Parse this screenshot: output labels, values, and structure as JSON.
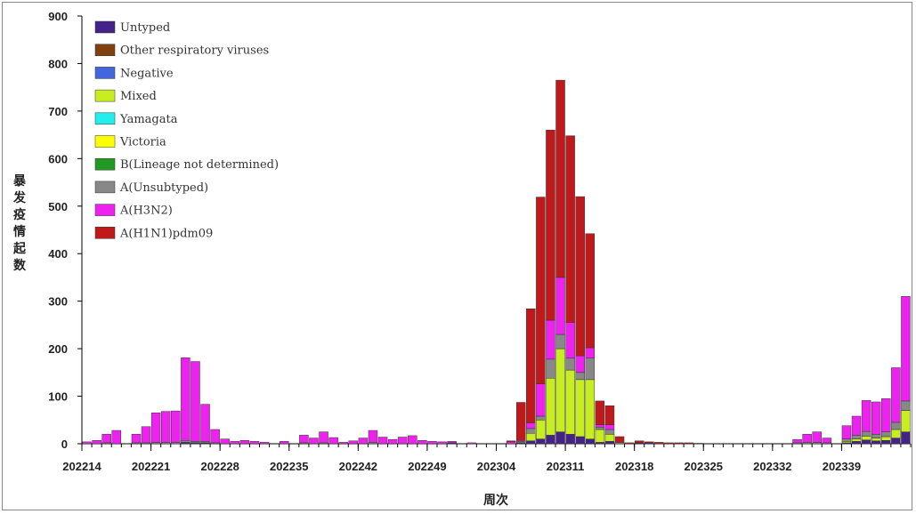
{
  "chart_data": {
    "type": "bar",
    "stacked": true,
    "xlabel": "周次",
    "ylabel": "暴发疫情起数",
    "ylim": [
      0,
      900
    ],
    "yticks": [
      0,
      100,
      200,
      300,
      400,
      500,
      600,
      700,
      800,
      900
    ],
    "xtick_labels": [
      "202214",
      "202221",
      "202228",
      "202235",
      "202242",
      "202249",
      "202304",
      "202311",
      "202318",
      "202325",
      "202332",
      "202339"
    ],
    "legend_position": "top-left",
    "colors": {
      "A(H1N1)pdm09": "#c0191b",
      "A(H3N2)": "#ee22ee",
      "A(Unsubtyped)": "#888888",
      "B(Lineage not determined)": "#229922",
      "Victoria": "#ffff00",
      "Yamagata": "#22eeee",
      "Mixed": "#c8ee22",
      "Negative": "#4466dd",
      "Other respiratory viruses": "#804010",
      "Untyped": "#442288"
    },
    "legend": [
      "Untyped",
      "Other respiratory viruses",
      "Negative",
      "Mixed",
      "Yamagata",
      "Victoria",
      "B(Lineage not determined)",
      "A(Unsubtyped)",
      "A(H3N2)",
      "A(H1N1)pdm09"
    ],
    "stack_order": [
      "Untyped",
      "Other respiratory viruses",
      "Negative",
      "B(Lineage not determined)",
      "Victoria",
      "Yamagata",
      "Mixed",
      "A(Unsubtyped)",
      "A(H3N2)",
      "A(H1N1)pdm09"
    ],
    "start_week": "202214",
    "weeks": [
      {
        "A(H3N2)": 4,
        "A(H1N1)pdm09": 0
      },
      {
        "A(H3N2)": 7
      },
      {
        "A(H3N2)": 18,
        "A(Unsubtyped)": 2
      },
      {
        "A(H3N2)": 28
      },
      {},
      {
        "A(H3N2)": 18,
        "A(Unsubtyped)": 2
      },
      {
        "A(H3N2)": 34,
        "A(Unsubtyped)": 2
      },
      {
        "A(H3N2)": 62,
        "A(Unsubtyped)": 3
      },
      {
        "A(H3N2)": 65,
        "A(Unsubtyped)": 3
      },
      {
        "A(H3N2)": 66,
        "A(Unsubtyped)": 3
      },
      {
        "A(H3N2)": 174,
        "A(Unsubtyped)": 4,
        "Untyped": 3
      },
      {
        "A(H3N2)": 168,
        "A(Unsubtyped)": 3,
        "Untyped": 2
      },
      {
        "A(H3N2)": 78,
        "A(Unsubtyped)": 3,
        "Untyped": 2
      },
      {
        "A(H3N2)": 28,
        "A(Unsubtyped)": 2
      },
      {
        "A(H3N2)": 10
      },
      {
        "A(H3N2)": 5
      },
      {
        "A(H3N2)": 7
      },
      {
        "A(H3N2)": 5
      },
      {
        "A(H3N2)": 3
      },
      {},
      {
        "A(H3N2)": 5
      },
      {},
      {
        "A(H3N2)": 16,
        "A(Unsubtyped)": 2
      },
      {
        "A(H3N2)": 12
      },
      {
        "A(H3N2)": 23,
        "A(Unsubtyped)": 2
      },
      {
        "A(H3N2)": 13
      },
      {
        "A(H3N2)": 3
      },
      {
        "A(H3N2)": 6
      },
      {
        "A(H3N2)": 12
      },
      {
        "A(H3N2)": 25,
        "A(Unsubtyped)": 3
      },
      {
        "A(H3N2)": 14
      },
      {
        "A(H3N2)": 9
      },
      {
        "A(H3N2)": 14
      },
      {
        "A(H3N2)": 17
      },
      {
        "A(H3N2)": 7
      },
      {
        "A(H3N2)": 5
      },
      {
        "A(H3N2)": 4
      },
      {
        "A(H3N2)": 3,
        "Untyped": 2
      },
      {},
      {
        "A(H3N2)": 2
      },
      {},
      {},
      {},
      {
        "A(H3N2)": 4,
        "A(H1N1)pdm09": 2
      },
      {
        "A(H1N1)pdm09": 80,
        "A(H3N2)": 2,
        "A(Unsubtyped)": 3,
        "Mixed": 0,
        "Untyped": 2
      },
      {
        "A(H1N1)pdm09": 240,
        "A(H3N2)": 12,
        "A(Unsubtyped)": 10,
        "Mixed": 16,
        "Untyped": 6
      },
      {
        "A(H1N1)pdm09": 393,
        "A(H3N2)": 68,
        "A(Unsubtyped)": 8,
        "Mixed": 40,
        "Untyped": 10
      },
      {
        "A(H1N1)pdm09": 400,
        "A(H3N2)": 82,
        "A(Unsubtyped)": 40,
        "Mixed": 120,
        "Untyped": 18
      },
      {
        "A(H1N1)pdm09": 415,
        "A(H3N2)": 120,
        "A(Unsubtyped)": 30,
        "Mixed": 175,
        "Untyped": 25
      },
      {
        "A(H1N1)pdm09": 393,
        "A(H3N2)": 75,
        "A(Unsubtyped)": 25,
        "Mixed": 135,
        "Untyped": 20
      },
      {
        "A(H1N1)pdm09": 335,
        "A(H3N2)": 35,
        "A(Unsubtyped)": 15,
        "Mixed": 120,
        "Untyped": 15
      },
      {
        "A(H1N1)pdm09": 240,
        "A(H3N2)": 22,
        "A(Unsubtyped)": 45,
        "Mixed": 125,
        "Untyped": 10
      },
      {
        "A(H1N1)pdm09": 50,
        "A(H3N2)": 5,
        "A(Unsubtyped)": 5,
        "Mixed": 27,
        "Untyped": 3
      },
      {
        "A(H1N1)pdm09": 40,
        "A(H3N2)": 10,
        "A(Unsubtyped)": 10,
        "Mixed": 15,
        "Untyped": 5
      },
      {
        "A(H1N1)pdm09": 12,
        "A(Unsubtyped)": 3
      },
      {
        "A(H1N1)pdm09": 2
      },
      {
        "A(H1N1)pdm09": 4,
        "Untyped": 2
      },
      {
        "A(H1N1)pdm09": 2,
        "Untyped": 2
      },
      {
        "A(H1N1)pdm09": 3
      },
      {
        "A(H1N1)pdm09": 2
      },
      {
        "A(H1N1)pdm09": 2
      },
      {
        "A(H1N1)pdm09": 2
      },
      {
        "A(H1N1)pdm09": 1
      },
      {},
      {},
      {},
      {},
      {},
      {},
      {},
      {},
      {},
      {
        "A(H3N2)": 7,
        "A(Unsubtyped)": 2
      },
      {
        "A(H3N2)": 17,
        "A(Unsubtyped)": 3
      },
      {
        "A(H3N2)": 22,
        "A(Unsubtyped)": 3
      },
      {
        "A(H3N2)": 10,
        "A(Unsubtyped)": 2
      },
      {},
      {
        "A(H3N2)": 28,
        "A(Unsubtyped)": 5,
        "Mixed": 3,
        "Untyped": 2
      },
      {
        "A(H3N2)": 40,
        "A(Unsubtyped)": 8,
        "Mixed": 5,
        "Untyped": 5
      },
      {
        "A(H3N2)": 65,
        "A(Unsubtyped)": 10,
        "Mixed": 8,
        "Untyped": 8
      },
      {
        "A(H3N2)": 68,
        "A(Unsubtyped)": 8,
        "Mixed": 6,
        "Untyped": 6
      },
      {
        "A(H3N2)": 70,
        "A(Unsubtyped)": 10,
        "Mixed": 8,
        "Untyped": 7
      },
      {
        "A(H3N2)": 115,
        "A(Unsubtyped)": 15,
        "Mixed": 18,
        "Untyped": 12
      },
      {
        "A(H3N2)": 220,
        "A(Unsubtyped)": 20,
        "Mixed": 45,
        "Untyped": 25
      }
    ]
  }
}
